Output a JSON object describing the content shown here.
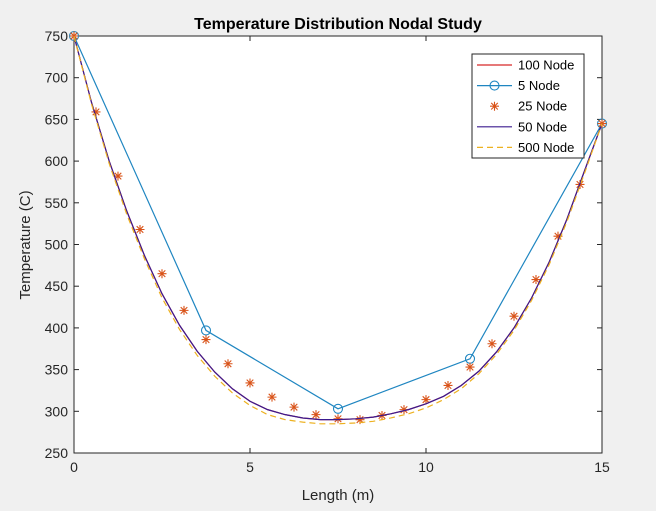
{
  "chart_data": {
    "type": "line",
    "title": "Temperature Distribution Nodal Study",
    "xlabel": "Length (m)",
    "ylabel": "Temperature (C)",
    "xlim": [
      0,
      15
    ],
    "ylim": [
      250,
      750
    ],
    "xticks": [
      0,
      5,
      10,
      15
    ],
    "yticks": [
      250,
      300,
      350,
      400,
      450,
      500,
      550,
      600,
      650,
      700,
      750
    ],
    "legend_position": "top-right",
    "grid": false,
    "series": [
      {
        "name": "100 Node",
        "color": "#d62728",
        "line": "solid",
        "marker": "none",
        "x": [
          0,
          0.5,
          1,
          1.5,
          2,
          2.5,
          3,
          3.5,
          4,
          4.5,
          5,
          5.5,
          6,
          6.5,
          7,
          7.5,
          8,
          8.5,
          9,
          9.5,
          10,
          10.5,
          11,
          11.5,
          12,
          12.5,
          13,
          13.5,
          14,
          14.5,
          15
        ],
        "y": [
          750,
          670,
          600,
          540,
          487,
          441,
          403,
          372,
          347,
          327,
          312,
          302,
          296,
          292,
          290,
          290,
          291,
          293,
          297,
          302,
          309,
          318,
          331,
          348,
          371,
          400,
          436,
          479,
          530,
          588,
          645
        ]
      },
      {
        "name": "5 Node",
        "color": "#1f86c1",
        "line": "solid",
        "marker": "circle",
        "x": [
          0,
          3.75,
          7.5,
          11.25,
          15
        ],
        "y": [
          750,
          397,
          303,
          363,
          645
        ]
      },
      {
        "name": "25 Node",
        "color": "#d95319",
        "line": "none",
        "marker": "asterisk",
        "x": [
          0,
          0.625,
          1.25,
          1.875,
          2.5,
          3.125,
          3.75,
          4.375,
          5,
          5.625,
          6.25,
          6.875,
          7.5,
          8.125,
          8.75,
          9.375,
          10,
          10.625,
          11.25,
          11.875,
          12.5,
          13.125,
          13.75,
          14.375,
          15
        ],
        "y": [
          750,
          659,
          582,
          518,
          465,
          421,
          386,
          357,
          334,
          317,
          305,
          296,
          291,
          290,
          295,
          302,
          314,
          331,
          353,
          381,
          414,
          458,
          510,
          572,
          645
        ]
      },
      {
        "name": "50 Node",
        "color": "#3b1b8f",
        "line": "solid",
        "marker": "none",
        "x": [
          0,
          0.5,
          1,
          1.5,
          2,
          2.5,
          3,
          3.5,
          4,
          4.5,
          5,
          5.5,
          6,
          6.5,
          7,
          7.5,
          8,
          8.5,
          9,
          9.5,
          10,
          10.5,
          11,
          11.5,
          12,
          12.5,
          13,
          13.5,
          14,
          14.5,
          15
        ],
        "y": [
          750,
          670,
          600,
          540,
          487,
          441,
          403,
          372,
          347,
          327,
          312,
          302,
          296,
          292,
          290,
          290,
          291,
          293,
          297,
          302,
          309,
          318,
          331,
          348,
          371,
          400,
          436,
          479,
          530,
          588,
          645
        ]
      },
      {
        "name": "500 Node",
        "color": "#edb120",
        "line": "dashed",
        "marker": "none",
        "x": [
          0,
          0.5,
          1,
          1.5,
          2,
          2.5,
          3,
          3.5,
          4,
          4.5,
          5,
          5.5,
          6,
          6.5,
          7,
          7.5,
          8,
          8.5,
          9,
          9.5,
          10,
          10.5,
          11,
          11.5,
          12,
          12.5,
          13,
          13.5,
          14,
          14.5,
          15
        ],
        "y": [
          750,
          668,
          597,
          536,
          483,
          436,
          398,
          367,
          342,
          322,
          307,
          296,
          290,
          287,
          285,
          285,
          286,
          288,
          292,
          297,
          304,
          314,
          327,
          345,
          368,
          397,
          433,
          476,
          527,
          585,
          645
        ]
      }
    ]
  }
}
